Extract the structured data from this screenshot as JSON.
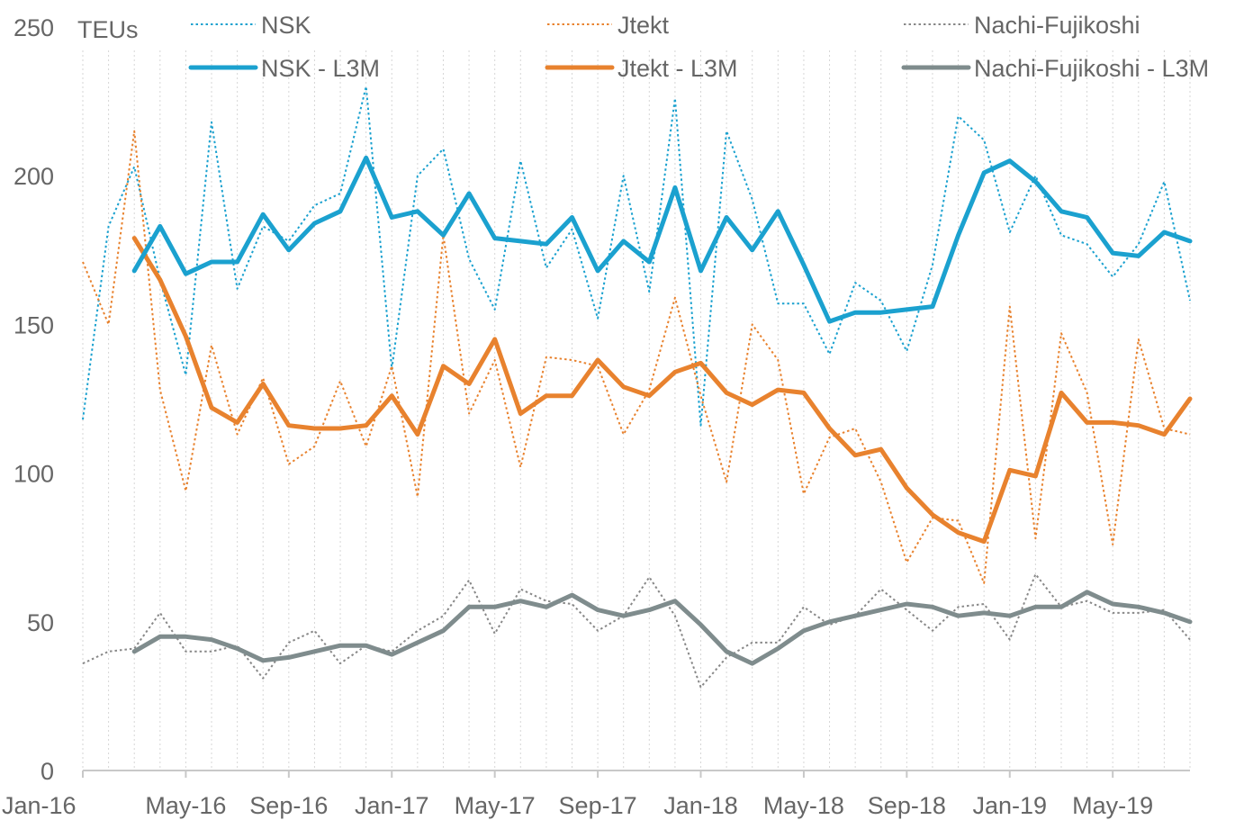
{
  "chart_data": {
    "type": "line",
    "ylabel": "TEUs",
    "ylim": [
      0,
      250
    ],
    "yticks": [
      0,
      50,
      100,
      150,
      200,
      250
    ],
    "x": [
      "Jan-16",
      "Feb-16",
      "Mar-16",
      "Apr-16",
      "May-16",
      "Jun-16",
      "Jul-16",
      "Aug-16",
      "Sep-16",
      "Oct-16",
      "Nov-16",
      "Dec-16",
      "Jan-17",
      "Feb-17",
      "Mar-17",
      "Apr-17",
      "May-17",
      "Jun-17",
      "Jul-17",
      "Aug-17",
      "Sep-17",
      "Oct-17",
      "Nov-17",
      "Dec-17",
      "Jan-18",
      "Feb-18",
      "Mar-18",
      "Apr-18",
      "May-18",
      "Jun-18",
      "Jul-18",
      "Aug-18",
      "Sep-18",
      "Oct-18",
      "Nov-18",
      "Dec-18",
      "Jan-19",
      "Feb-19",
      "Mar-19",
      "Apr-19",
      "May-19",
      "Jun-19",
      "Jul-19",
      "Aug-19"
    ],
    "xtick_labels": [
      "Jan-16",
      "May-16",
      "Sep-16",
      "Jan-17",
      "May-17",
      "Sep-17",
      "Jan-18",
      "May-18",
      "Sep-18",
      "Jan-19",
      "May-19"
    ],
    "legend_position": "top",
    "grid": "vertical dotted",
    "series": [
      {
        "name": "NSK",
        "style": "dotted",
        "color": "#1BA1CF",
        "values": [
          118,
          183,
          203,
          165,
          133,
          218,
          162,
          183,
          178,
          190,
          194,
          230,
          135,
          200,
          209,
          172,
          155,
          205,
          169,
          182,
          152,
          200,
          161,
          226,
          116,
          215,
          192,
          157,
          157,
          140,
          164,
          158,
          141,
          170,
          220,
          212,
          181,
          200,
          180,
          177,
          166,
          177,
          198,
          158
        ]
      },
      {
        "name": "Jtekt",
        "style": "dotted",
        "color": "#E8822E",
        "values": [
          171,
          150,
          215,
          128,
          94,
          143,
          113,
          132,
          103,
          109,
          131,
          109,
          136,
          92,
          180,
          120,
          138,
          102,
          139,
          138,
          136,
          113,
          128,
          159,
          126,
          97,
          150,
          138,
          93,
          112,
          115,
          97,
          70,
          85,
          84,
          63,
          156,
          78,
          147,
          127,
          76,
          145,
          115,
          113
        ]
      },
      {
        "name": "Nachi-Fujikoshi",
        "style": "dotted",
        "color": "#888888",
        "values": [
          36,
          40,
          41,
          53,
          40,
          40,
          42,
          31,
          43,
          47,
          36,
          42,
          40,
          47,
          52,
          64,
          46,
          61,
          57,
          56,
          47,
          52,
          65,
          52,
          28,
          38,
          43,
          43,
          55,
          49,
          52,
          61,
          54,
          47,
          55,
          56,
          44,
          66,
          55,
          57,
          53,
          53,
          54,
          44
        ]
      },
      {
        "name": "NSK - L3M",
        "style": "solid",
        "color": "#1BA1CF",
        "values": [
          null,
          null,
          168,
          183,
          167,
          171,
          171,
          187,
          175,
          184,
          188,
          206,
          186,
          188,
          180,
          194,
          179,
          178,
          177,
          186,
          168,
          178,
          171,
          196,
          168,
          186,
          175,
          188,
          170,
          151,
          154,
          154,
          155,
          156,
          180,
          201,
          205,
          198,
          188,
          186,
          174,
          173,
          181,
          178
        ]
      },
      {
        "name": "Jtekt - L3M",
        "style": "solid",
        "color": "#E8822E",
        "values": [
          null,
          null,
          179,
          165,
          146,
          122,
          117,
          130,
          116,
          115,
          115,
          116,
          126,
          113,
          136,
          130,
          145,
          120,
          126,
          126,
          138,
          129,
          126,
          134,
          137,
          127,
          123,
          128,
          127,
          115,
          106,
          108,
          95,
          86,
          80,
          77,
          101,
          99,
          127,
          117,
          117,
          116,
          113,
          125
        ]
      },
      {
        "name": "Nachi-Fujikoshi  - L3M",
        "style": "solid",
        "color": "#7F8C8D",
        "values": [
          null,
          null,
          40,
          45,
          45,
          44,
          41,
          37,
          38,
          40,
          42,
          42,
          39,
          43,
          47,
          55,
          55,
          57,
          55,
          59,
          54,
          52,
          54,
          57,
          49,
          40,
          36,
          41,
          47,
          50,
          52,
          54,
          56,
          55,
          52,
          53,
          52,
          55,
          55,
          60,
          56,
          55,
          53,
          50
        ]
      }
    ]
  }
}
